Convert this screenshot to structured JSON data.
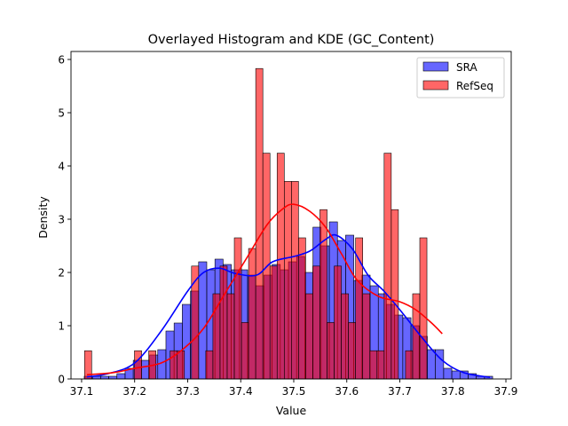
{
  "chart_data": {
    "type": "bar",
    "title": "Overlayed Histogram and KDE (GC_Content)",
    "xlabel": "Value",
    "ylabel": "Density",
    "xlim": [
      37.08,
      37.91
    ],
    "ylim": [
      0,
      6.15
    ],
    "xticks": [
      "37.1",
      "37.2",
      "37.3",
      "37.4",
      "37.5",
      "37.6",
      "37.7",
      "37.8",
      "37.9"
    ],
    "yticks": [
      "0",
      "1",
      "2",
      "3",
      "4",
      "5",
      "6"
    ],
    "legend": {
      "position": "top-right",
      "entries": [
        "SRA",
        "RefSeq"
      ]
    },
    "series": [
      {
        "name": "SRA",
        "kind": "histogram",
        "color": "#0000ff",
        "alpha": 0.6,
        "bin_start": 37.105,
        "bin_width": 0.0154,
        "values": [
          0.05,
          0.05,
          0.05,
          0.05,
          0.1,
          0.2,
          0.35,
          0.35,
          0.45,
          0.55,
          0.9,
          1.05,
          1.4,
          1.65,
          2.2,
          2.05,
          2.25,
          2.15,
          2.05,
          2.05,
          1.95,
          1.75,
          1.95,
          2.15,
          2.05,
          2.2,
          2.3,
          2.0,
          2.85,
          2.5,
          2.95,
          2.6,
          2.7,
          1.85,
          1.95,
          1.75,
          1.6,
          1.4,
          1.2,
          1.15,
          1.0,
          0.8,
          0.55,
          0.55,
          0.2,
          0.15,
          0.15,
          0.1,
          0.05,
          0.05
        ]
      },
      {
        "name": "RefSeq",
        "kind": "histogram",
        "color": "#ff0000",
        "alpha": 0.6,
        "bin_start": 37.1055,
        "bin_width": 0.01345,
        "values": [
          0.53,
          0,
          0,
          0,
          0,
          0,
          0,
          0.53,
          0,
          0.53,
          0,
          0,
          0.53,
          0.53,
          0,
          2.12,
          0,
          0.53,
          1.6,
          2.12,
          1.6,
          2.65,
          1.06,
          2.45,
          5.83,
          4.24,
          2.12,
          4.24,
          3.71,
          3.71,
          2.65,
          1.6,
          2.12,
          3.18,
          1.06,
          2.12,
          1.6,
          1.06,
          2.65,
          1.6,
          0.53,
          0.53,
          4.24,
          3.18,
          0,
          0.53,
          1.6,
          2.65
        ]
      }
    ],
    "kde": [
      {
        "name": "SRA",
        "color": "#0000ff",
        "x": [
          37.11,
          37.15,
          37.2,
          37.25,
          37.3,
          37.33,
          37.36,
          37.39,
          37.43,
          37.46,
          37.5,
          37.53,
          37.56,
          37.58,
          37.61,
          37.64,
          37.67,
          37.7,
          37.74,
          37.78,
          37.82,
          37.87
        ],
        "y": [
          0.04,
          0.1,
          0.3,
          0.9,
          1.65,
          2.0,
          2.08,
          1.98,
          1.95,
          2.2,
          2.3,
          2.4,
          2.62,
          2.7,
          2.45,
          1.95,
          1.65,
          1.3,
          0.8,
          0.35,
          0.12,
          0.03
        ]
      },
      {
        "name": "RefSeq",
        "color": "#ff0000",
        "x": [
          37.11,
          37.16,
          37.2,
          37.25,
          37.29,
          37.33,
          37.37,
          37.41,
          37.45,
          37.48,
          37.5,
          37.53,
          37.56,
          37.59,
          37.62,
          37.66,
          37.7,
          37.73,
          37.76,
          37.78
        ],
        "y": [
          0.08,
          0.12,
          0.2,
          0.3,
          0.55,
          0.95,
          1.6,
          2.25,
          2.9,
          3.2,
          3.28,
          3.15,
          2.85,
          2.35,
          1.85,
          1.55,
          1.45,
          1.3,
          1.05,
          0.85
        ]
      }
    ]
  }
}
